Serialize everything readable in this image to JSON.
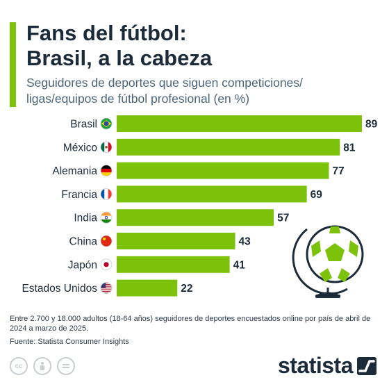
{
  "header": {
    "title_line1": "Fans del fútbol:",
    "title_line2": "Brasil, a la cabeza",
    "subtitle": "Seguidores de deportes que siguen competiciones/ ligas/equipos de fútbol profesional (en %)"
  },
  "chart_data": {
    "type": "bar",
    "orientation": "horizontal",
    "categories": [
      "Brasil",
      "México",
      "Alemania",
      "Francia",
      "India",
      "China",
      "Japón",
      "Estados Unidos"
    ],
    "values": [
      89,
      81,
      77,
      69,
      57,
      43,
      41,
      22
    ],
    "flags": [
      "brazil-flag-icon",
      "mexico-flag-icon",
      "germany-flag-icon",
      "france-flag-icon",
      "india-flag-icon",
      "china-flag-icon",
      "japan-flag-icon",
      "usa-flag-icon"
    ],
    "bar_color": "#7dc20a",
    "xlim": [
      0,
      89
    ],
    "grid": false
  },
  "footer": {
    "note": "Entre 2.700 y 18.000 adultos (18-64 años) seguidores de deportes encuestados online por país de abril de 2024 a marzo de 2025.",
    "source": "Fuente: Statista Consumer Insights",
    "brand": "statista",
    "license_icons": [
      "cc-icon",
      "attribution-icon",
      "no-derivatives-icon"
    ]
  },
  "colors": {
    "accent": "#7dc20a",
    "text_dark": "#1c2b3a",
    "text_muted": "#4b6478"
  },
  "decoration": "football-globe-icon"
}
